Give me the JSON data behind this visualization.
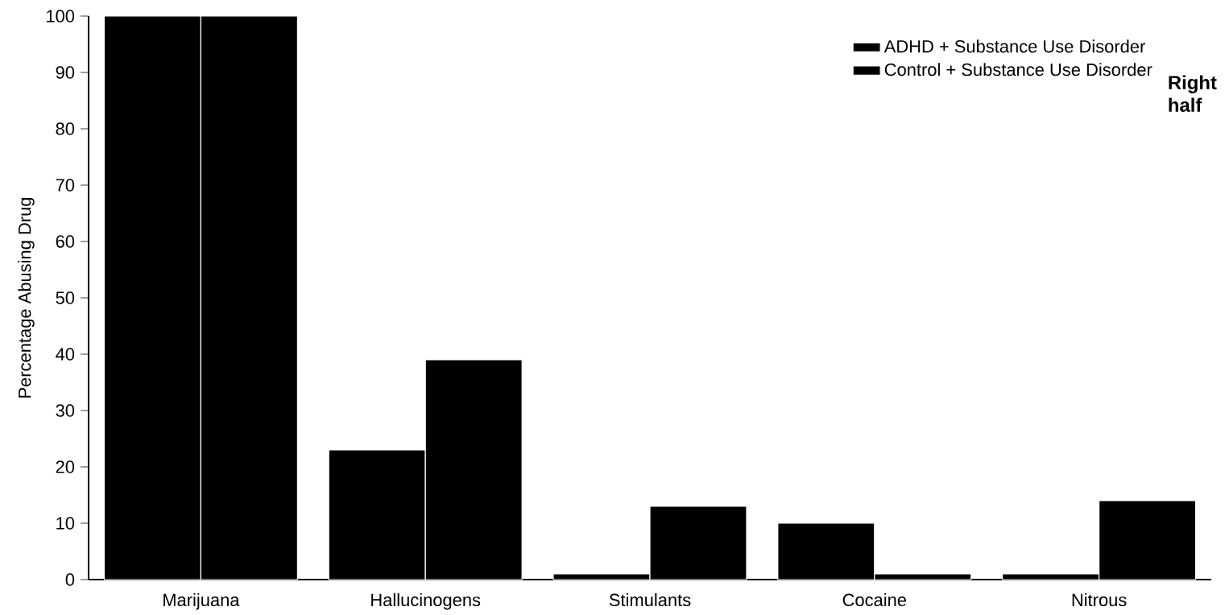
{
  "chart_data": {
    "type": "bar",
    "ylabel": "Percentage Abusing Drug",
    "categories": [
      "Marijuana",
      "Hallucinogens",
      "Stimulants",
      "Cocaine",
      "Nitrous"
    ],
    "series": [
      {
        "name": "ADHD + Substance Use Disorder",
        "color": "#000000",
        "values": [
          100,
          23,
          1,
          10,
          1
        ]
      },
      {
        "name": "Control + Substance Use Disorder",
        "color": "#000000",
        "values": [
          100,
          39,
          13,
          1,
          14
        ]
      }
    ],
    "ylim": [
      0,
      100
    ],
    "yticks": [
      0,
      10,
      20,
      30,
      40,
      50,
      60,
      70,
      80,
      90,
      100
    ],
    "legend": "top right",
    "grid": false,
    "annotations": [
      "Right half"
    ]
  }
}
